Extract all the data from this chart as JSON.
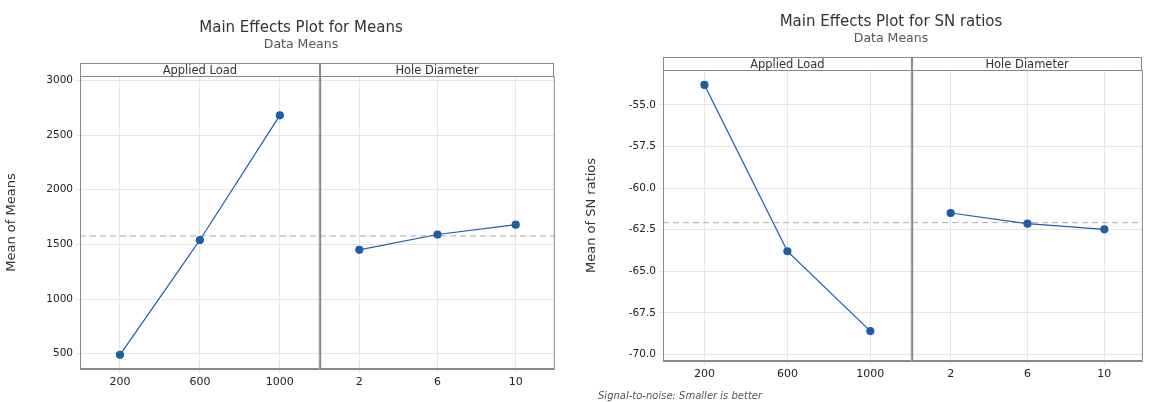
{
  "chart_data": [
    {
      "type": "line",
      "title": "Main Effects Plot for Means",
      "subtitle": "Data Means",
      "xlabel": "Applied Load",
      "ylabel": "Mean of Means",
      "categories": [
        "200",
        "600",
        "1000"
      ],
      "series": [
        {
          "color": "#1f5ca8",
          "values": [
            490,
            1540,
            2680
          ]
        }
      ],
      "ylim": [
        360,
        3040
      ],
      "yticks": [
        500,
        1000,
        1500,
        2000,
        2500,
        3000
      ],
      "grid": true,
      "marker": "circle",
      "line_style": "solid",
      "ref_lines": [
        {
          "axis": "y",
          "value": 1577,
          "color": "#aaaaaa",
          "line_style": "dashed"
        }
      ]
    },
    {
      "type": "line",
      "xlabel": "Hole Diameter",
      "categories": [
        "2",
        "6",
        "10"
      ],
      "series": [
        {
          "color": "#1f5ca8",
          "values": [
            1450,
            1590,
            1680
          ]
        }
      ],
      "ylim": [
        360,
        3040
      ],
      "yticks": [
        500,
        1000,
        1500,
        2000,
        2500,
        3000
      ],
      "grid": true,
      "marker": "circle",
      "line_style": "solid",
      "tick_labels": "x",
      "ref_lines": [
        {
          "axis": "y",
          "value": 1577,
          "color": "#aaaaaa",
          "line_style": "dashed"
        }
      ]
    },
    {
      "type": "line",
      "title": "Main Effects Plot for SN ratios",
      "subtitle": "Data Means",
      "xlabel": "Applied Load",
      "ylabel": "Mean of SN ratios",
      "categories": [
        "200",
        "600",
        "1000"
      ],
      "series": [
        {
          "color": "#1f5ca8",
          "values": [
            -53.8,
            -63.8,
            -68.6
          ]
        }
      ],
      "ylim": [
        -70.4,
        -52.9
      ],
      "yticks": [
        {
          "value": -70,
          "label": "-70.0"
        },
        -67.5,
        {
          "value": -65,
          "label": "-65.0"
        },
        -62.5,
        {
          "value": -60,
          "label": "-60.0"
        },
        -57.5,
        {
          "value": -55,
          "label": "-55.0"
        }
      ],
      "grid": true,
      "marker": "circle",
      "line_style": "solid",
      "ref_lines": [
        {
          "axis": "y",
          "value": -62.08,
          "color": "#aaaaaa",
          "line_style": "dashed"
        }
      ],
      "annotations": [
        "Signal-to-noise: Smaller is better"
      ]
    },
    {
      "type": "line",
      "xlabel": "Hole Diameter",
      "categories": [
        "2",
        "6",
        "10"
      ],
      "series": [
        {
          "color": "#1f5ca8",
          "values": [
            -61.5,
            -62.14,
            -62.48
          ]
        }
      ],
      "ylim": [
        -70.4,
        -52.9
      ],
      "yticks": [
        -70,
        -67.5,
        -65,
        -62.5,
        -60,
        -57.5,
        -55
      ],
      "grid": true,
      "marker": "circle",
      "line_style": "solid",
      "tick_labels": "x",
      "ref_lines": [
        {
          "axis": "y",
          "value": -62.08,
          "color": "#aaaaaa",
          "line_style": "dashed"
        }
      ]
    }
  ]
}
